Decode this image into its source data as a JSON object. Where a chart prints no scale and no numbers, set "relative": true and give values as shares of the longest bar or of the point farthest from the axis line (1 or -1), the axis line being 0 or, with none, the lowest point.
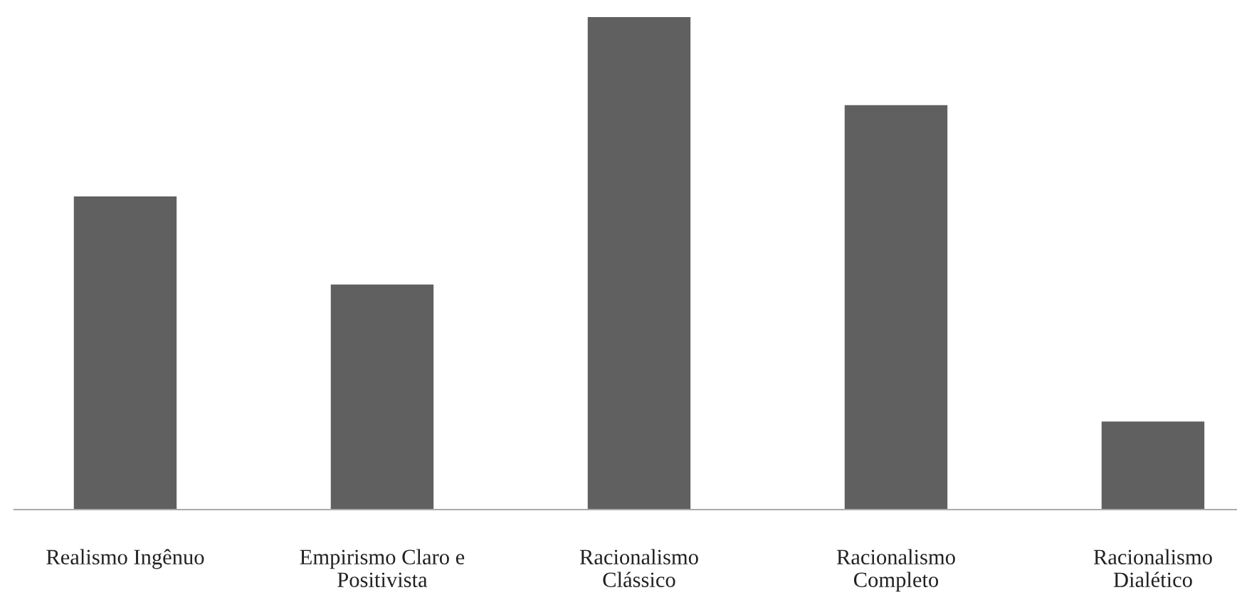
{
  "chart_data": {
    "type": "bar",
    "relative": true,
    "categories": [
      "Realismo Ingênuo",
      "Empirismo Claro e\nPositivista",
      "Racionalismo\nClássico",
      "Racionalismo\nCompleto",
      "Racionalismo\nDialético"
    ],
    "values": [
      0.636,
      0.457,
      1,
      0.821,
      0.179
    ],
    "color": "#606060",
    "grid": false,
    "legend": false
  }
}
